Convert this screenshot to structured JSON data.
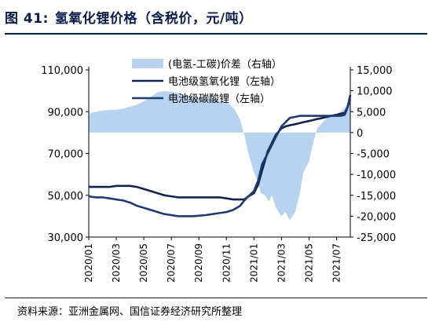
{
  "header": {
    "figure_label": "图 41:",
    "title": "氢氧化锂价格（含税价，元/吨）"
  },
  "source": "资料来源：亚洲金属网、国信证券经济研究所整理",
  "colors": {
    "spread": "#b7d3ef",
    "hydroxide": "#13234d",
    "carbonate": "#1f3c70",
    "title": "#0b1d4a"
  },
  "chart_data": {
    "type": "line",
    "title": "",
    "xlabel": "",
    "ylabel": "",
    "ylim": [
      30000,
      110000
    ],
    "y2lim": [
      -25000,
      15000
    ],
    "grid": false,
    "legend_position": "top-center",
    "left_ticks": [
      "110,000",
      "90,000",
      "70,000",
      "50,000",
      "30,000"
    ],
    "right_ticks": [
      "15,000",
      "10,000",
      "5,000",
      "0",
      "-5,000",
      "-10,000",
      "-15,000",
      "-20,000",
      "-25,000"
    ],
    "x_ticks": [
      "2020/01",
      "2020/03",
      "2020/05",
      "2020/07",
      "2020/09",
      "2020/11",
      "2021/01",
      "2021/03",
      "2021/05",
      "2021/07"
    ],
    "series": [
      {
        "name": "(电氢-工碳)价差（右轴）",
        "axis": "right",
        "type": "area",
        "x": [
          0,
          0.3,
          0.6,
          1,
          1.5,
          2,
          2.5,
          3,
          3.5,
          4,
          4.5,
          5,
          5.5,
          6,
          6.5,
          7,
          7.5,
          8,
          8.5,
          9,
          9.5,
          10,
          10.3,
          10.6,
          11,
          11.3,
          11.6,
          12,
          12.3,
          12.5,
          12.8,
          13.1,
          13.3,
          13.6,
          14,
          14.3,
          14.6,
          15,
          15.3,
          15.6,
          16,
          16.3,
          16.6,
          17,
          17.3,
          17.6,
          18,
          18.3,
          18.6,
          19
        ],
        "values": [
          4500,
          4800,
          5000,
          5300,
          5400,
          5500,
          5700,
          6200,
          6700,
          7500,
          8500,
          9700,
          9900,
          9800,
          9500,
          9000,
          8600,
          8400,
          8300,
          8000,
          7600,
          7200,
          6600,
          5500,
          3000,
          -500,
          -5000,
          -9500,
          -12000,
          -14500,
          -15000,
          -16500,
          -15000,
          -18000,
          -20000,
          -19000,
          -21000,
          -19000,
          -15000,
          -9500,
          -7000,
          -2500,
          1000,
          2500,
          3500,
          4000,
          4500,
          5000,
          6000,
          8000
        ]
      },
      {
        "name": "电池级氢氧化锂（左轴）",
        "axis": "left",
        "type": "line",
        "x": [
          0,
          0.5,
          1,
          1.5,
          2,
          2.5,
          3,
          3.5,
          4,
          4.5,
          5,
          5.5,
          6,
          6.5,
          7,
          7.5,
          8,
          8.5,
          9,
          9.5,
          10,
          10.5,
          11,
          11.3,
          11.6,
          12,
          12.3,
          12.6,
          13,
          13.3,
          13.6,
          14,
          14.3,
          14.6,
          15,
          15.3,
          15.6,
          16,
          16.3,
          16.6,
          17,
          17.3,
          17.6,
          18,
          18.3,
          18.6,
          18.8,
          19
        ],
        "values": [
          54000,
          54000,
          54000,
          54000,
          54500,
          54500,
          54500,
          54000,
          53000,
          52000,
          51000,
          50000,
          49500,
          49000,
          49000,
          49000,
          49000,
          49000,
          49000,
          49000,
          48500,
          48000,
          48000,
          48000,
          49500,
          51000,
          55000,
          62000,
          71000,
          75000,
          79000,
          82000,
          83000,
          83500,
          84000,
          84500,
          85000,
          85500,
          86000,
          86500,
          87000,
          87500,
          88000,
          88500,
          89000,
          89500,
          92000,
          98000
        ]
      },
      {
        "name": "电池级碳酸锂（左轴）",
        "axis": "left",
        "type": "line",
        "x": [
          0,
          0.5,
          1,
          1.5,
          2,
          2.5,
          3,
          3.5,
          4,
          4.5,
          5,
          5.5,
          6,
          6.5,
          7,
          7.5,
          8,
          8.5,
          9,
          9.5,
          10,
          10.5,
          11,
          11.3,
          11.6,
          12,
          12.3,
          12.6,
          13,
          13.3,
          13.6,
          14,
          14.3,
          14.6,
          15,
          15.3,
          15.6,
          16,
          16.3,
          16.6,
          17,
          17.3,
          17.6,
          18,
          18.3,
          18.6,
          18.8,
          19
        ],
        "values": [
          49500,
          49000,
          49000,
          48500,
          48000,
          47500,
          46500,
          45000,
          44000,
          43000,
          42000,
          41000,
          40500,
          40000,
          40000,
          40000,
          40200,
          40500,
          41000,
          41500,
          42000,
          43000,
          45000,
          47500,
          49500,
          52000,
          57000,
          65000,
          70000,
          74000,
          78000,
          83000,
          85000,
          87000,
          87500,
          88000,
          88000,
          88000,
          88000,
          88000,
          88000,
          88000,
          88000,
          88000,
          88000,
          88500,
          92000,
          96000
        ]
      }
    ]
  }
}
